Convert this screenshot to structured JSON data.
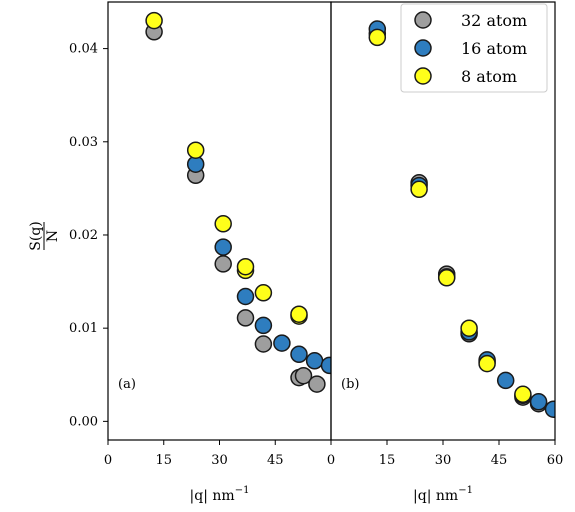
{
  "chart_data": {
    "type": "scatter",
    "ylabel": "S(q) / N",
    "ylabel_num": "S(q)",
    "ylabel_den": "N",
    "ylim": [
      -0.002,
      0.045
    ],
    "yticks": [
      0.0,
      0.01,
      0.02,
      0.03,
      0.04
    ],
    "ytick_labels": [
      "0.00",
      "0.01",
      "0.02",
      "0.03",
      "0.04"
    ],
    "legend_position": "top-right of panel (b)",
    "grid": false,
    "colors": {
      "32 atom": "#9e9e9e",
      "16 atom": "#2e7dbf",
      "8 atom": "#ffff1a",
      "edge": "#1a1a1a"
    },
    "panels": [
      {
        "tag": "(a)",
        "xlabel": "|q| nm",
        "xlabel_sup": "−1",
        "xlim": [
          0,
          60
        ],
        "xticks": [
          0,
          15,
          30,
          45
        ],
        "xtick_labels": [
          "0",
          "15",
          "30",
          "45"
        ],
        "series": [
          {
            "name": "32 atom",
            "points": [
              [
                12.4,
                0.0418
              ],
              [
                23.6,
                0.0264
              ],
              [
                31.0,
                0.0169
              ],
              [
                37.0,
                0.0111
              ],
              [
                41.8,
                0.0083
              ],
              [
                51.4,
                0.0047
              ],
              [
                52.6,
                0.0049
              ],
              [
                56.2,
                0.004
              ]
            ]
          },
          {
            "name": "16 atom",
            "points": [
              [
                23.6,
                0.0276
              ],
              [
                31.0,
                0.0187
              ],
              [
                37.0,
                0.0134
              ],
              [
                41.8,
                0.0103
              ],
              [
                46.8,
                0.0084
              ],
              [
                51.4,
                0.0072
              ],
              [
                55.6,
                0.0065
              ],
              [
                59.6,
                0.006
              ]
            ]
          },
          {
            "name": "8 atom",
            "points": [
              [
                12.4,
                0.043
              ],
              [
                23.6,
                0.0291
              ],
              [
                31.0,
                0.0212
              ],
              [
                37.0,
                0.0162
              ],
              [
                37.0,
                0.0166
              ],
              [
                41.8,
                0.0138
              ],
              [
                51.4,
                0.0113
              ],
              [
                51.4,
                0.0115
              ]
            ]
          }
        ]
      },
      {
        "tag": "(b)",
        "xlabel": "|q| nm",
        "xlabel_sup": "−1",
        "xlim": [
          0,
          60
        ],
        "xticks": [
          0,
          15,
          30,
          45,
          60
        ],
        "xtick_labels": [
          "0",
          "15",
          "30",
          "45",
          "60"
        ],
        "series": [
          {
            "name": "32 atom",
            "points": [
              [
                12.4,
                0.0416
              ],
              [
                23.6,
                0.0256
              ],
              [
                31.0,
                0.0158
              ],
              [
                37.0,
                0.0094
              ],
              [
                41.8,
                0.0064
              ],
              [
                51.4,
                0.0026
              ],
              [
                55.6,
                0.0019
              ]
            ]
          },
          {
            "name": "16 atom",
            "points": [
              [
                12.4,
                0.0421
              ],
              [
                23.6,
                0.0253
              ],
              [
                31.0,
                0.0155
              ],
              [
                37.0,
                0.0096
              ],
              [
                41.8,
                0.0066
              ],
              [
                46.8,
                0.0044
              ],
              [
                51.4,
                0.0028
              ],
              [
                55.6,
                0.0021
              ],
              [
                59.6,
                0.0013
              ]
            ]
          },
          {
            "name": "8 atom",
            "points": [
              [
                12.4,
                0.0412
              ],
              [
                23.6,
                0.0249
              ],
              [
                31.0,
                0.0154
              ],
              [
                37.0,
                0.01
              ],
              [
                41.8,
                0.0062
              ],
              [
                51.4,
                0.0029
              ]
            ]
          }
        ]
      }
    ],
    "legend": [
      "32 atom",
      "16 atom",
      "8 atom"
    ]
  }
}
